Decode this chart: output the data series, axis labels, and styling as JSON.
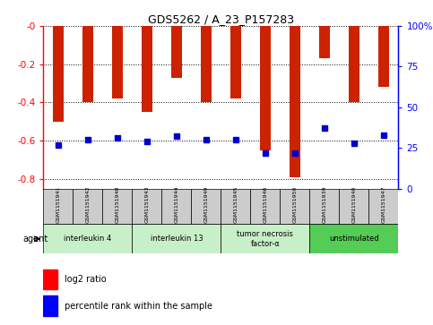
{
  "title": "GDS5262 / A_23_P157283",
  "samples": [
    "GSM1151941",
    "GSM1151942",
    "GSM1151948",
    "GSM1151943",
    "GSM1151944",
    "GSM1151949",
    "GSM1151945",
    "GSM1151946",
    "GSM1151950",
    "GSM1151939",
    "GSM1151940",
    "GSM1151947"
  ],
  "log2_ratio": [
    -0.5,
    -0.4,
    -0.38,
    -0.45,
    -0.27,
    -0.4,
    -0.38,
    -0.65,
    -0.79,
    -0.17,
    -0.4,
    -0.32
  ],
  "percentile_rank": [
    27,
    30,
    31,
    29,
    32,
    30,
    30,
    22,
    22,
    37,
    28,
    33
  ],
  "agent_groups": [
    {
      "label": "interleukin 4",
      "start": 0,
      "end": 3,
      "color": "#c8f0c8"
    },
    {
      "label": "interleukin 13",
      "start": 3,
      "end": 6,
      "color": "#c8f0c8"
    },
    {
      "label": "tumor necrosis\nfactor-α",
      "start": 6,
      "end": 9,
      "color": "#c8f0c8"
    },
    {
      "label": "unstimulated",
      "start": 9,
      "end": 12,
      "color": "#55cc55"
    }
  ],
  "bar_color": "#cc2200",
  "dot_color": "#0000cc",
  "ylim_left": [
    -0.85,
    0.0
  ],
  "ylim_right": [
    0,
    100
  ],
  "yticks_left": [
    0.0,
    -0.2,
    -0.4,
    -0.6,
    -0.8
  ],
  "yticks_right": [
    0,
    25,
    50,
    75,
    100
  ],
  "bg_color": "#ffffff",
  "bar_width": 0.35,
  "sample_box_color": "#cccccc",
  "legend_items": [
    "log2 ratio",
    "percentile rank within the sample"
  ]
}
